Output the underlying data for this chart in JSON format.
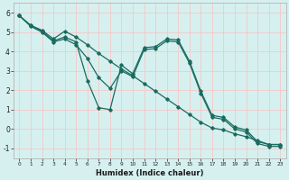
{
  "xlabel": "Humidex (Indice chaleur)",
  "background_color": "#d6f0ef",
  "grid_color": "#f5c8c8",
  "line_color": "#1a6b60",
  "xlim": [
    -0.5,
    23.5
  ],
  "ylim": [
    -1.5,
    6.5
  ],
  "xticks": [
    0,
    1,
    2,
    3,
    4,
    5,
    6,
    7,
    8,
    9,
    10,
    11,
    12,
    13,
    14,
    15,
    16,
    17,
    18,
    19,
    20,
    21,
    22,
    23
  ],
  "yticks": [
    -1,
    0,
    1,
    2,
    3,
    4,
    5,
    6
  ],
  "series": [
    [
      5.85,
      5.35,
      5.1,
      4.65,
      5.05,
      4.75,
      4.35,
      3.9,
      3.5,
      3.1,
      2.75,
      2.35,
      1.95,
      1.55,
      1.15,
      0.75,
      0.35,
      0.05,
      -0.05,
      -0.25,
      -0.4,
      -0.6,
      -0.8,
      -0.8
    ],
    [
      5.85,
      5.35,
      5.05,
      4.55,
      4.75,
      4.5,
      2.5,
      1.1,
      1.0,
      3.3,
      2.85,
      4.2,
      4.25,
      4.65,
      4.6,
      3.5,
      1.95,
      0.7,
      0.6,
      0.1,
      -0.05,
      -0.65,
      -0.8,
      -0.8
    ],
    [
      5.85,
      5.3,
      5.0,
      4.5,
      4.65,
      4.35,
      3.65,
      2.65,
      2.1,
      3.0,
      2.7,
      4.1,
      4.15,
      4.55,
      4.5,
      3.4,
      1.85,
      0.6,
      0.5,
      0.0,
      -0.15,
      -0.75,
      -0.9,
      -0.9
    ]
  ]
}
